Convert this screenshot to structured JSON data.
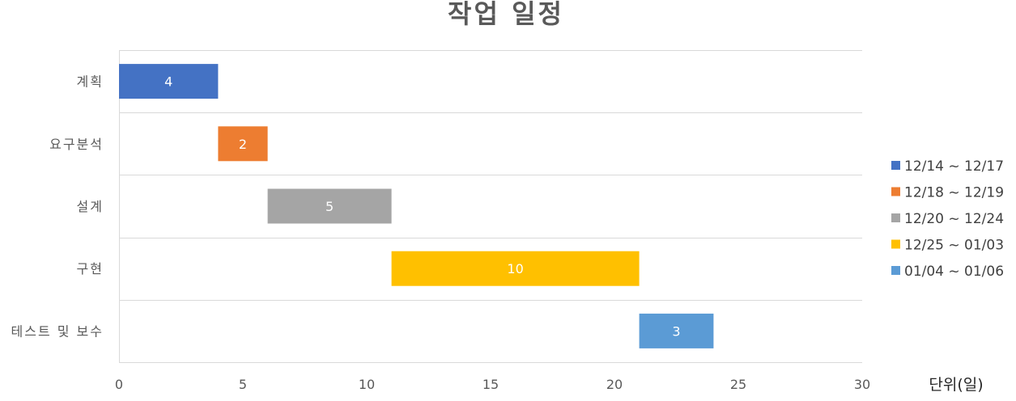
{
  "chart_data": {
    "type": "bar",
    "orientation": "horizontal",
    "stacked": true,
    "title": "작업 일정",
    "categories": [
      "계획",
      "요구분석",
      "설계",
      "구현",
      "테스트 및 보수"
    ],
    "offsets": [
      0,
      4,
      6,
      11,
      21
    ],
    "series": [
      {
        "name": "12/14 ~ 12/17",
        "category": "계획",
        "start": 0,
        "value": 4,
        "color": "#4472C4"
      },
      {
        "name": "12/18 ~ 12/19",
        "category": "요구분석",
        "start": 4,
        "value": 2,
        "color": "#ED7D31"
      },
      {
        "name": "12/20 ~ 12/24",
        "category": "설계",
        "start": 6,
        "value": 5,
        "color": "#A5A5A5"
      },
      {
        "name": "12/25 ~ 01/03",
        "category": "구현",
        "start": 11,
        "value": 10,
        "color": "#FFC000"
      },
      {
        "name": "01/04 ~ 01/06",
        "category": "테스트 및 보수",
        "start": 21,
        "value": 3,
        "color": "#5B9BD5"
      }
    ],
    "xlim": [
      0,
      30
    ],
    "xticks": [
      0,
      5,
      10,
      15,
      20,
      25,
      30
    ],
    "xlabel": "단위(일)",
    "ylabel": "",
    "grid": "horizontal",
    "legend": "right"
  }
}
